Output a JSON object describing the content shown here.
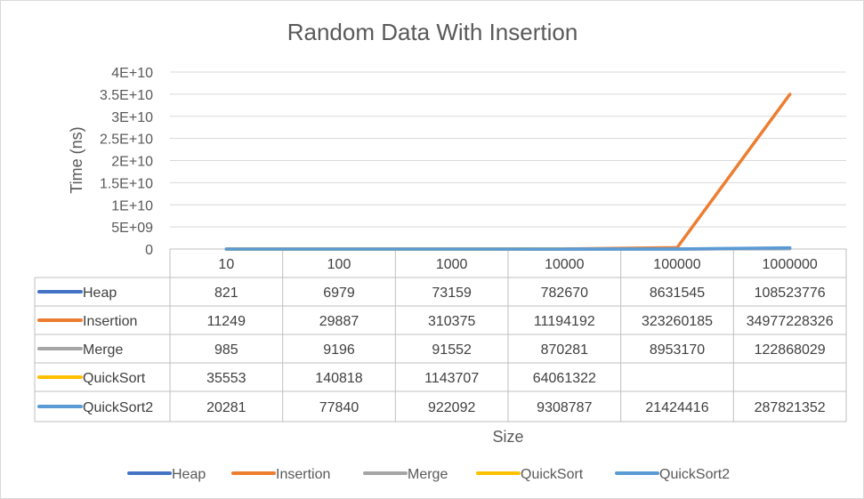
{
  "chart_data": {
    "type": "line",
    "title": "Random Data With Insertion",
    "xlabel": "Size",
    "ylabel": "Time (ns)",
    "ylim": [
      0,
      40000000000
    ],
    "y_ticks": [
      "0",
      "5E+09",
      "1E+10",
      "1.5E+10",
      "2E+10",
      "2.5E+10",
      "3E+10",
      "3.5E+10",
      "4E+10"
    ],
    "y_tick_values": [
      0,
      5000000000,
      10000000000,
      15000000000,
      20000000000,
      25000000000,
      30000000000,
      35000000000,
      40000000000
    ],
    "categories": [
      "10",
      "100",
      "1000",
      "10000",
      "100000",
      "1000000"
    ],
    "grid": true,
    "legend": "bottom",
    "data_table": true,
    "series": [
      {
        "name": "Heap",
        "color": "#4472c4",
        "values": [
          821,
          6979,
          73159,
          782670,
          8631545,
          108523776
        ]
      },
      {
        "name": "Insertion",
        "color": "#ed7d31",
        "values": [
          11249,
          29887,
          310375,
          11194192,
          323260185,
          34977228326
        ]
      },
      {
        "name": "Merge",
        "color": "#a5a5a5",
        "values": [
          985,
          9196,
          91552,
          870281,
          8953170,
          122868029
        ]
      },
      {
        "name": "QuickSort",
        "color": "#ffc000",
        "values": [
          35553,
          140818,
          1143707,
          64061322,
          null,
          null
        ]
      },
      {
        "name": "QuickSort2",
        "color": "#5b9bd5",
        "values": [
          20281,
          77840,
          922092,
          9308787,
          21424416,
          287821352
        ]
      }
    ]
  }
}
